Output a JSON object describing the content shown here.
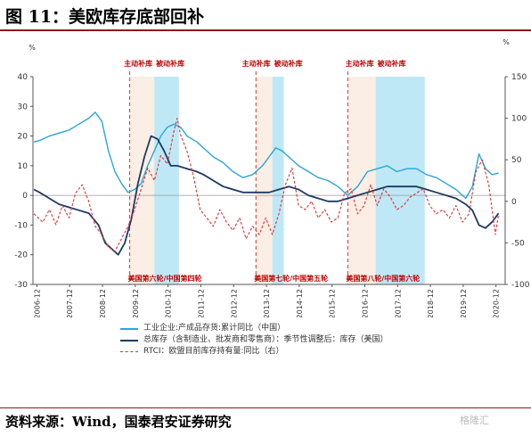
{
  "figure": {
    "title": "图 11：美欧库存底部回补",
    "source": "资料来源：Wind，国泰君安证券研究",
    "watermark": "格隆汇"
  },
  "chart_data": {
    "type": "line",
    "left_axis": {
      "unit": "%",
      "ylim": [
        -30,
        40
      ],
      "ticks": [
        -30,
        -20,
        -10,
        0,
        10,
        20,
        30,
        40
      ]
    },
    "right_axis": {
      "unit": "%",
      "ylim": [
        -100,
        150
      ],
      "ticks": [
        -100,
        -50,
        0,
        50,
        100,
        150
      ]
    },
    "x_tick_labels": [
      "2006-12",
      "2007-12",
      "2008-12",
      "2009-12",
      "2010-12",
      "2011-12",
      "2012-12",
      "2013-12",
      "2014-12",
      "2015-12",
      "2016-12",
      "2017-12",
      "2018-12",
      "2019-12",
      "2020-12"
    ],
    "x_range": [
      2006.8,
      2021.2
    ],
    "shaded_periods": [
      {
        "label": "主动补库",
        "start": 2009.75,
        "end": 2010.5,
        "color": "#fbeee4"
      },
      {
        "label": "被动补库",
        "start": 2010.5,
        "end": 2011.25,
        "color": "#bfe8f6"
      },
      {
        "label": "主动补库",
        "start": 2013.6,
        "end": 2014.1,
        "color": "#fbeee4"
      },
      {
        "label": "被动补库",
        "start": 2014.1,
        "end": 2014.45,
        "color": "#bfe8f6"
      },
      {
        "label": "主动补库",
        "start": 2016.4,
        "end": 2017.25,
        "color": "#fbeee4"
      },
      {
        "label": "被动补库",
        "start": 2017.25,
        "end": 2018.75,
        "color": "#bfe8f6"
      }
    ],
    "period_labels": [
      {
        "text": "美国第六轮/中国第四轮",
        "x": 2010.5
      },
      {
        "text": "美国第七轮/中国第五轮",
        "x": 2014.0
      },
      {
        "text": "美国第八轮/中国第六轮",
        "x": 2017.2
      }
    ],
    "series": [
      {
        "name": "工业企业:产成品存货:累计同比（中国）",
        "axis": "left",
        "color": "#2aa6d6",
        "style": "solid",
        "x": [
          2006.83,
          2007.0,
          2007.3,
          2007.6,
          2007.9,
          2008.2,
          2008.5,
          2008.7,
          2008.9,
          2009.1,
          2009.3,
          2009.5,
          2009.7,
          2009.9,
          2010.1,
          2010.3,
          2010.5,
          2010.7,
          2010.9,
          2011.1,
          2011.3,
          2011.5,
          2011.8,
          2012.0,
          2012.3,
          2012.6,
          2012.9,
          2013.2,
          2013.5,
          2013.8,
          2014.0,
          2014.2,
          2014.4,
          2014.6,
          2014.9,
          2015.2,
          2015.5,
          2015.8,
          2016.1,
          2016.4,
          2016.7,
          2017.0,
          2017.3,
          2017.6,
          2017.9,
          2018.2,
          2018.5,
          2018.8,
          2019.1,
          2019.4,
          2019.7,
          2020.0,
          2020.2,
          2020.4,
          2020.6,
          2020.8,
          2021.0
        ],
        "y": [
          18,
          18.5,
          20,
          21,
          22,
          24,
          26,
          28,
          25,
          15,
          8,
          4,
          1,
          2,
          4,
          10,
          15,
          20,
          23,
          24,
          23,
          20,
          18,
          16,
          13,
          11,
          8,
          6,
          7,
          10,
          13,
          16,
          15,
          13,
          10,
          8,
          6,
          5,
          3,
          0,
          3,
          8,
          9,
          10,
          8,
          9,
          9,
          7,
          6,
          4,
          2,
          -1,
          3,
          14,
          9,
          7,
          7.5
        ]
      },
      {
        "name": "总库存（含制造业、批发商和零售商）：季节性调整后：库存（美国）",
        "axis": "left",
        "color": "#1f3864",
        "style": "solid",
        "x": [
          2006.83,
          2007.0,
          2007.3,
          2007.6,
          2007.9,
          2008.2,
          2008.5,
          2008.8,
          2009.0,
          2009.2,
          2009.4,
          2009.6,
          2009.8,
          2010.0,
          2010.2,
          2010.4,
          2010.6,
          2010.8,
          2011.0,
          2011.2,
          2011.5,
          2011.8,
          2012.0,
          2012.3,
          2012.6,
          2012.9,
          2013.2,
          2013.5,
          2013.8,
          2014.0,
          2014.3,
          2014.6,
          2014.9,
          2015.2,
          2015.5,
          2015.8,
          2016.1,
          2016.4,
          2016.7,
          2017.0,
          2017.3,
          2017.6,
          2017.9,
          2018.2,
          2018.5,
          2018.8,
          2019.1,
          2019.4,
          2019.7,
          2020.0,
          2020.2,
          2020.4,
          2020.6,
          2020.8,
          2021.0
        ],
        "y": [
          2,
          1,
          -1,
          -3,
          -4,
          -5,
          -6,
          -10,
          -16,
          -18,
          -20,
          -16,
          -8,
          4,
          13,
          20,
          19,
          15,
          10,
          10,
          9,
          8,
          7,
          5,
          3,
          2,
          1,
          1,
          1,
          1,
          2,
          3,
          2,
          0,
          -1,
          -2,
          -2,
          -1,
          0,
          1,
          2,
          3,
          3,
          3,
          3,
          2,
          1,
          0,
          -1,
          -3,
          -5,
          -10,
          -11,
          -9,
          -6
        ]
      },
      {
        "name": "RTCI：欧盟目前库存持有量:同比（右）",
        "axis": "right",
        "color": "#e03030",
        "style": "dashed",
        "x": [
          2006.83,
          2007.1,
          2007.3,
          2007.5,
          2007.7,
          2007.9,
          2008.1,
          2008.3,
          2008.5,
          2008.7,
          2008.9,
          2009.1,
          2009.3,
          2009.5,
          2009.7,
          2009.9,
          2010.1,
          2010.3,
          2010.5,
          2010.7,
          2010.9,
          2011.1,
          2011.2,
          2011.3,
          2011.5,
          2011.7,
          2011.9,
          2012.1,
          2012.3,
          2012.5,
          2012.7,
          2012.9,
          2013.1,
          2013.3,
          2013.5,
          2013.7,
          2013.9,
          2014.1,
          2014.3,
          2014.5,
          2014.7,
          2014.9,
          2015.1,
          2015.3,
          2015.5,
          2015.7,
          2015.9,
          2016.1,
          2016.3,
          2016.5,
          2016.7,
          2016.9,
          2017.1,
          2017.3,
          2017.5,
          2017.7,
          2017.9,
          2018.1,
          2018.3,
          2018.5,
          2018.7,
          2018.9,
          2019.1,
          2019.3,
          2019.5,
          2019.7,
          2019.9,
          2020.1,
          2020.3,
          2020.5,
          2020.7,
          2020.9,
          2021.0
        ],
        "y": [
          -15,
          -25,
          -10,
          -28,
          -5,
          -20,
          10,
          20,
          0,
          -30,
          -40,
          -55,
          -60,
          -45,
          -30,
          -10,
          15,
          40,
          25,
          55,
          45,
          85,
          100,
          80,
          60,
          30,
          -10,
          -20,
          -30,
          -10,
          -25,
          -35,
          -20,
          -45,
          -30,
          -40,
          -20,
          -40,
          -15,
          20,
          40,
          -5,
          -10,
          0,
          -20,
          -10,
          -25,
          -20,
          10,
          15,
          -15,
          -5,
          20,
          -5,
          15,
          5,
          -10,
          -5,
          5,
          10,
          15,
          -5,
          -15,
          -10,
          -20,
          -5,
          -25,
          -15,
          35,
          50,
          20,
          -40,
          -15
        ]
      }
    ]
  }
}
